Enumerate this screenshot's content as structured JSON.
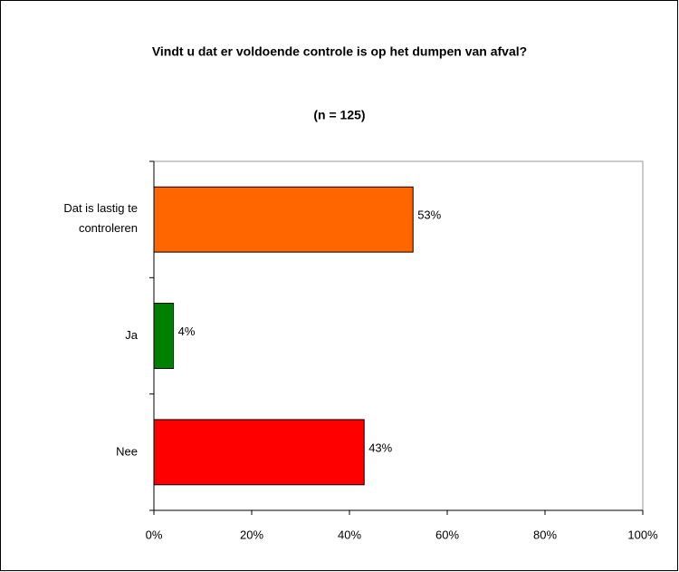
{
  "chart_data": {
    "type": "bar",
    "orientation": "horizontal",
    "title": "Vindt u dat er voldoende controle is op het dumpen van afval?",
    "subtitle": "(n = 125)",
    "categories": [
      "Dat is lastig te controleren",
      "Ja",
      "Nee"
    ],
    "values": [
      53,
      4,
      43
    ],
    "value_labels": [
      "53%",
      "4%",
      "43%"
    ],
    "colors": [
      "#ff6600",
      "#008000",
      "#ff0000"
    ],
    "xlim": [
      0,
      100
    ],
    "xticks": [
      {
        "value": 0,
        "label": "0%"
      },
      {
        "value": 20,
        "label": "20%"
      },
      {
        "value": 40,
        "label": "40%"
      },
      {
        "value": 60,
        "label": "60%"
      },
      {
        "value": 80,
        "label": "80%"
      },
      {
        "value": 100,
        "label": "100%"
      }
    ],
    "grid": false
  }
}
